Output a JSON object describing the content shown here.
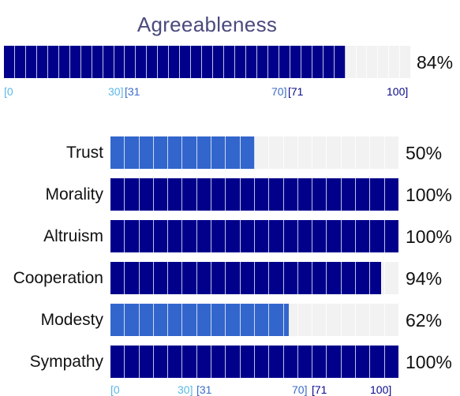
{
  "title": "Agreeableness",
  "colors": {
    "high": "#00008b",
    "mid": "#3366cc",
    "low_scale": "#5bb7e8",
    "track": "#f2f2f2"
  },
  "overall": {
    "value": 84,
    "label": "84%"
  },
  "scale": {
    "low_start": "[0",
    "low_end": "30]",
    "mid_start": "[31",
    "mid_end": "70]",
    "high_start": "[71",
    "high_end": "100]"
  },
  "facets": [
    {
      "name": "Trust",
      "value": 50,
      "label": "50%"
    },
    {
      "name": "Morality",
      "value": 100,
      "label": "100%"
    },
    {
      "name": "Altruism",
      "value": 100,
      "label": "100%"
    },
    {
      "name": "Cooperation",
      "value": 94,
      "label": "94%"
    },
    {
      "name": "Modesty",
      "value": 62,
      "label": "62%"
    },
    {
      "name": "Sympathy",
      "value": 100,
      "label": "100%"
    }
  ]
}
